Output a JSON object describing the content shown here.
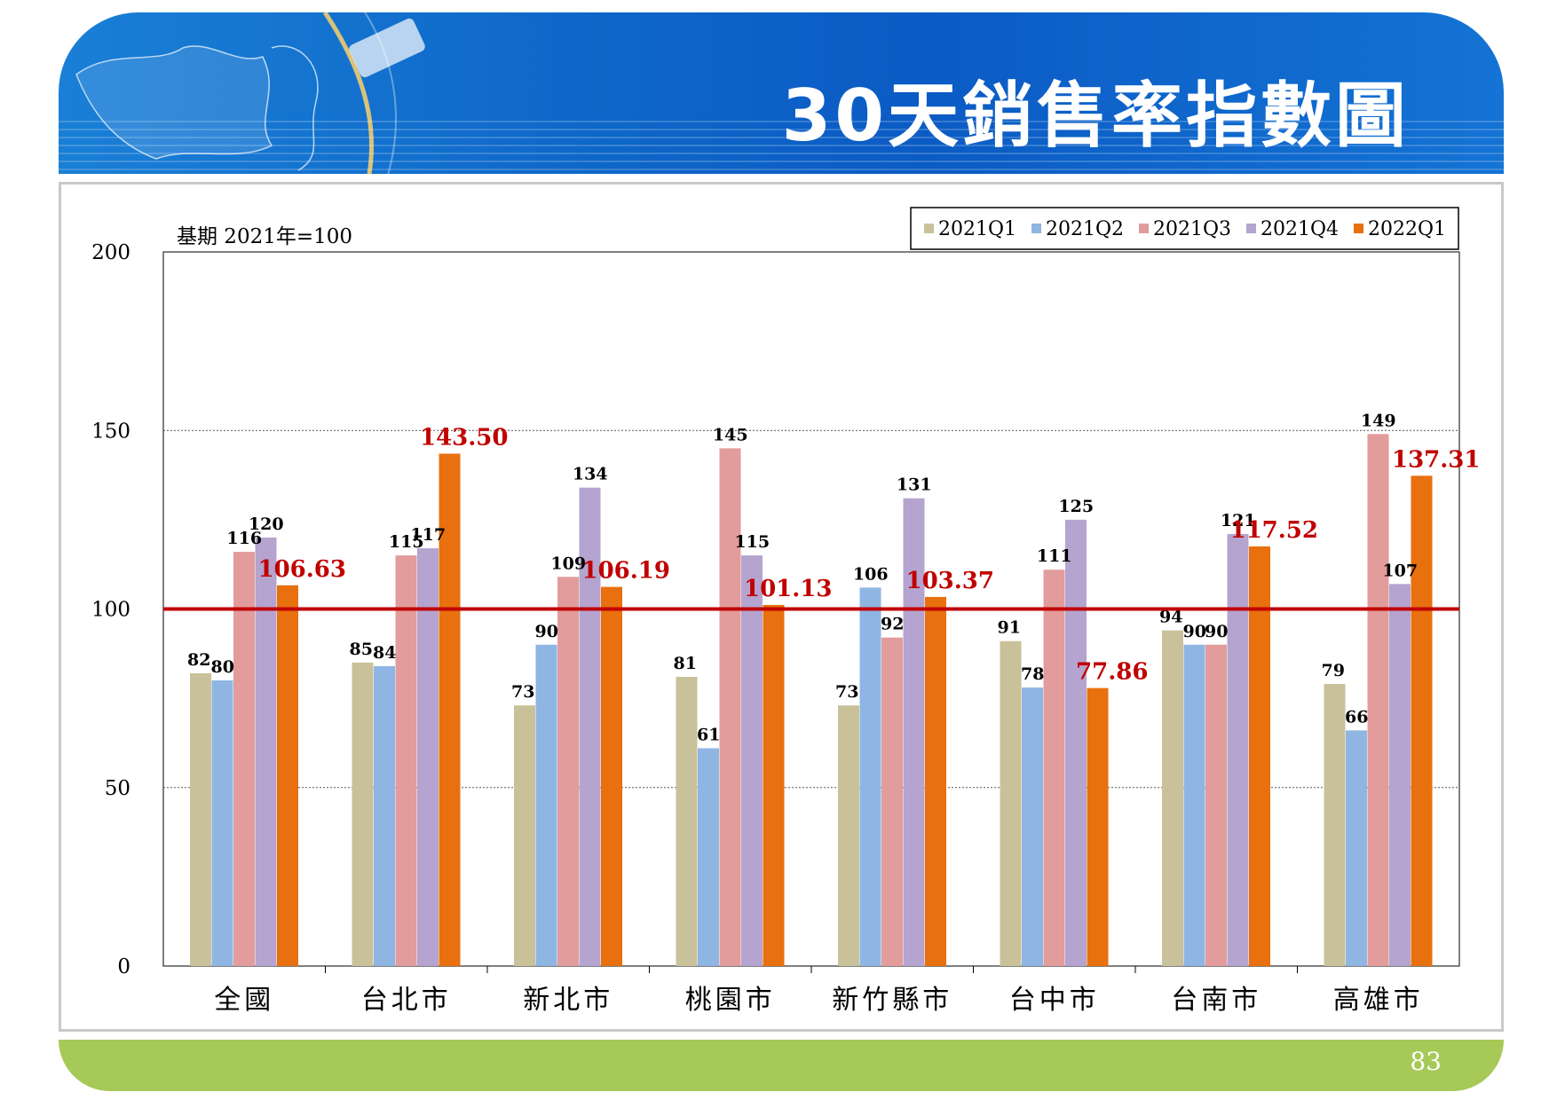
{
  "slide": {
    "title": "30天銷售率指數圖",
    "page_number": "83"
  },
  "colors": {
    "header_bg": "#0b5bc4",
    "footer_bg": "#a6c957",
    "series": [
      "#c9c19a",
      "#8fb5e3",
      "#e19c9b",
      "#b4a4cf",
      "#e8700e"
    ],
    "highlight_label": "#c00000",
    "reference_line": "#c00000"
  },
  "chart_data": {
    "type": "bar",
    "base_note": "基期 2021年=100",
    "categories": [
      "全國",
      "台北市",
      "新北市",
      "桃園市",
      "新竹縣市",
      "台中市",
      "台南市",
      "高雄市"
    ],
    "series": [
      {
        "name": "2021Q1",
        "values": [
          82,
          85,
          73,
          81,
          73,
          91,
          94,
          79
        ],
        "labels": [
          "82",
          "85",
          "73",
          "81",
          "73",
          "91",
          "94",
          "79"
        ]
      },
      {
        "name": "2021Q2",
        "values": [
          80,
          84,
          90,
          61,
          106,
          78,
          90,
          66
        ],
        "labels": [
          "80",
          "84",
          "90",
          "61",
          "106",
          "78",
          "90",
          "66"
        ]
      },
      {
        "name": "2021Q3",
        "values": [
          116,
          115,
          109,
          145,
          92,
          111,
          90,
          149
        ],
        "labels": [
          "116",
          "115",
          "109",
          "145",
          "92",
          "111",
          "90",
          "149"
        ]
      },
      {
        "name": "2021Q4",
        "values": [
          120,
          117,
          134,
          115,
          131,
          125,
          121,
          107
        ],
        "labels": [
          "120",
          "117",
          "134",
          "115",
          "131",
          "125",
          "121",
          "107"
        ]
      },
      {
        "name": "2022Q1",
        "values": [
          106.63,
          143.5,
          106.19,
          101.13,
          103.37,
          77.86,
          117.52,
          137.31
        ],
        "labels": [
          "106.63",
          "143.50",
          "106.19",
          "101.13",
          "103.37",
          "77.86",
          "117.52",
          "137.31"
        ]
      }
    ],
    "ylim": [
      0,
      200
    ],
    "yticks": [
      "0",
      "50",
      "100",
      "150",
      "200"
    ],
    "reference_value": 100,
    "legend_position": "top-right",
    "gridlines": "dotted at 50 and 150"
  }
}
